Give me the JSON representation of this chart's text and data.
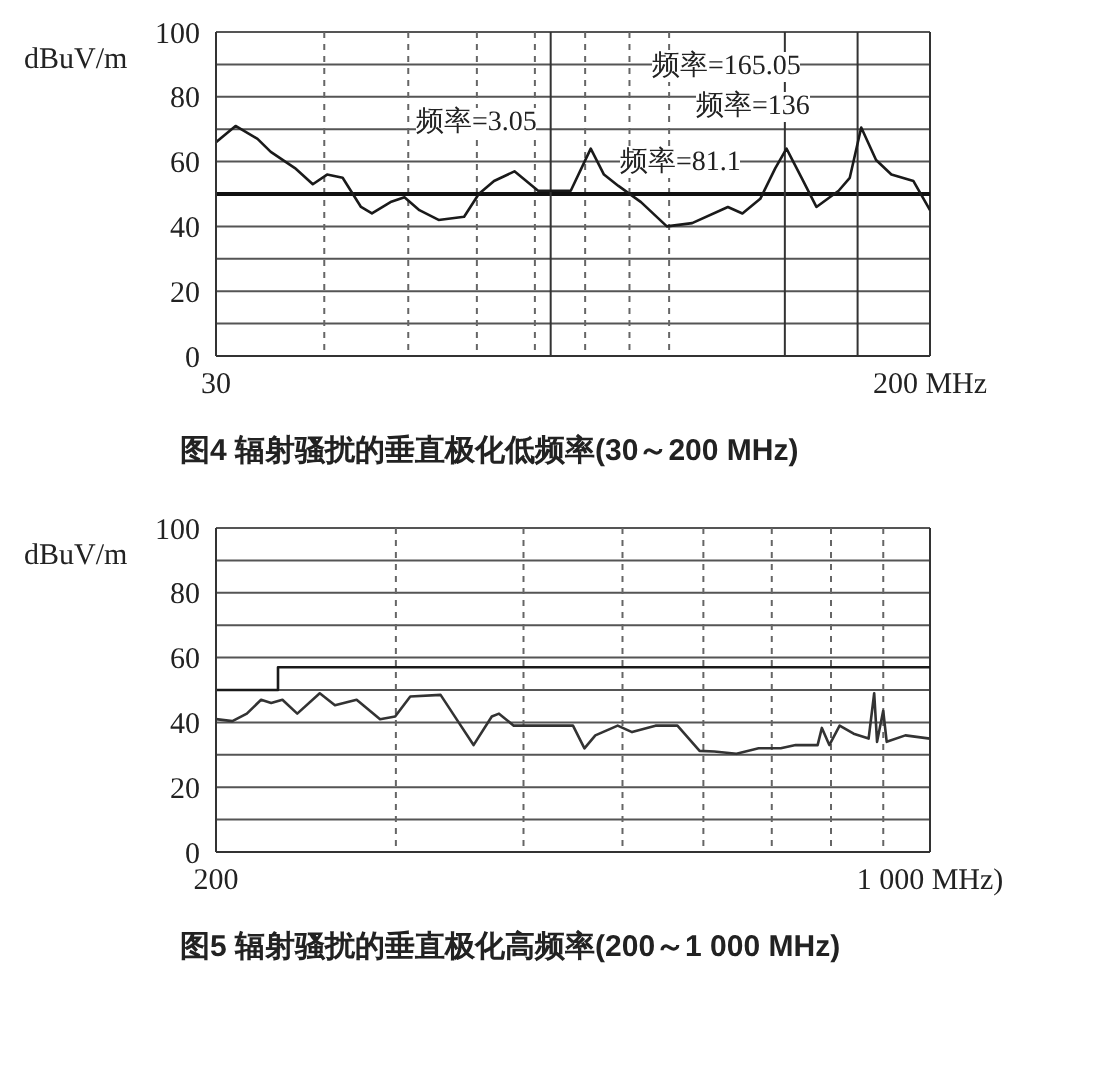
{
  "chart_data": [
    {
      "type": "line",
      "title": "图4 辐射骚扰的垂直极化低频率(30～200 MHz)",
      "ylabel": "dBuV/m",
      "log": "x",
      "xlim": [
        30,
        200
      ],
      "xticks": [
        30,
        {
          "value": 40,
          "label": null
        },
        {
          "value": 50,
          "label": null
        },
        {
          "value": 60,
          "label": null
        },
        {
          "value": 70,
          "label": null
        },
        {
          "value": 80,
          "label": null
        },
        {
          "value": 90,
          "label": null
        },
        {
          "value": 100,
          "label": null
        },
        {
          "value": 200,
          "label": "200 MHz"
        }
      ],
      "ylim": [
        0,
        100
      ],
      "yticks": [
        0,
        {
          "value": 10,
          "label": null
        },
        20,
        {
          "value": 30,
          "label": null
        },
        40,
        {
          "value": 50,
          "label": null
        },
        60,
        {
          "value": 70,
          "label": null
        },
        80,
        {
          "value": 90,
          "label": null
        },
        100
      ],
      "grid": true,
      "marker": "none",
      "line_style": "solid",
      "series": [
        {
          "color": "#1a1a1a",
          "x": [
            30,
            31.6,
            33.5,
            34.7,
            37.0,
            38.8,
            40.3,
            42.0,
            44.1,
            45.4,
            47.7,
            49.5,
            51.5,
            54.2,
            58.0,
            60.3,
            62.8,
            66.3,
            70.6,
            73.4,
            77.0,
            81.2,
            84.1,
            87.4,
            92.8,
            99.4,
            106.3,
            116.9,
            121.5,
            127.4,
            132.6,
            136.6,
            142.2,
            147.9,
            156.9,
            161.6,
            166.6,
            173.3,
            180.5,
            191.4,
            200
          ],
          "values": [
            66,
            71,
            67,
            63,
            58,
            53,
            56,
            55,
            46,
            44,
            47.5,
            49,
            45,
            42,
            43,
            50,
            54,
            57,
            51,
            51,
            51,
            64,
            56,
            52.5,
            47.5,
            40,
            41,
            46,
            44,
            48.5,
            58,
            64,
            55,
            46,
            51,
            55,
            70.5,
            60.5,
            56,
            54,
            45
          ]
        }
      ],
      "ref_lines": [
        {
          "axis": "y",
          "value": 50
        },
        {
          "axis": "x",
          "value": 73
        },
        {
          "axis": "x",
          "value": 136
        },
        {
          "axis": "x",
          "value": 165
        }
      ],
      "annotations": [
        "频率=3.05",
        "频率=81.1",
        "频率=165.05",
        "频率=136"
      ]
    },
    {
      "type": "line",
      "title": "图5 辐射骚扰的垂直极化高频率(200～1 000 MHz)",
      "ylabel": "dBuV/m",
      "log": "x",
      "xlim": [
        200,
        1000
      ],
      "xticks": [
        200,
        {
          "value": 300,
          "label": null
        },
        {
          "value": 400,
          "label": null
        },
        {
          "value": 500,
          "label": null
        },
        {
          "value": 600,
          "label": null
        },
        {
          "value": 700,
          "label": null
        },
        {
          "value": 800,
          "label": null
        },
        {
          "value": 900,
          "label": null
        },
        {
          "value": 1000,
          "label": "1 000 MHz)"
        }
      ],
      "ylim": [
        0,
        100
      ],
      "yticks": [
        0,
        {
          "value": 10,
          "label": null
        },
        20,
        {
          "value": 30,
          "label": null
        },
        40,
        {
          "value": 50,
          "label": null
        },
        60,
        {
          "value": 70,
          "label": null
        },
        80,
        {
          "value": 90,
          "label": null
        },
        100
      ],
      "grid": true,
      "marker": "none",
      "line_style": "solid",
      "series": [
        {
          "color": "#1a1a1a",
          "type": "step",
          "x": [
            200,
            230,
            1000
          ],
          "values": [
            50,
            57,
            57
          ]
        },
        {
          "color": "#333333",
          "x": [
            200,
            207.5,
            214.4,
            221.4,
            226.5,
            232.3,
            240.2,
            252.7,
            261.5,
            274.6,
            289.5,
            299.5,
            309.9,
            331.8,
            345.6,
            357.4,
            372.4,
            378.5,
            391.3,
            418.7,
            447.2,
            458.9,
            470.3,
            494.6,
            510.9,
            538.6,
            565.9,
            594.9,
            614.9,
            646.4,
            679.6,
            714.3,
            738.8,
            776.2,
            783.7,
            797,
            815.7,
            841.9,
            870.8,
            881.8,
            887.5,
            899.9,
            907,
            946,
            1000
          ],
          "values": [
            41,
            40.4,
            42.7,
            47,
            46,
            47,
            42.7,
            49,
            45.3,
            47,
            41,
            41.8,
            48,
            48.5,
            40,
            33,
            41.8,
            42.7,
            39,
            39,
            39,
            32,
            36,
            39,
            37,
            39,
            39,
            31.2,
            31,
            30.3,
            32,
            32,
            33,
            33,
            38.3,
            33,
            39,
            36.5,
            35,
            49,
            34,
            43.6,
            34,
            36,
            35
          ]
        }
      ]
    }
  ]
}
